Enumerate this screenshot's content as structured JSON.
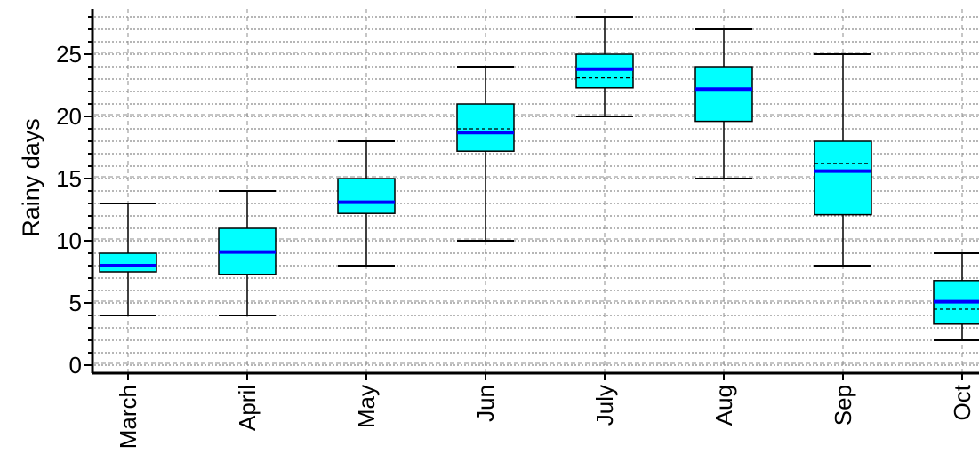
{
  "chart_data": {
    "type": "box",
    "title": "",
    "xlabel": "",
    "ylabel": "Rainy days",
    "ylim": [
      -1,
      29
    ],
    "yticks": [
      "0",
      "5",
      "10",
      "15",
      "20",
      "25"
    ],
    "grid": true,
    "categories": [
      "March",
      "April",
      "May",
      "Jun",
      "July",
      "Aug",
      "Sep",
      "Oct"
    ],
    "boxes": [
      {
        "category": "March",
        "min": 4,
        "q1": 7.5,
        "median": 8,
        "mean": 8,
        "q3": 9,
        "max": 13
      },
      {
        "category": "April",
        "min": 4,
        "q1": 7.3,
        "median": 9.1,
        "mean": 9.1,
        "q3": 11,
        "max": 14
      },
      {
        "category": "May",
        "min": 8,
        "q1": 12.2,
        "median": 13.1,
        "mean": 13.1,
        "q3": 15,
        "max": 18
      },
      {
        "category": "Jun",
        "min": 10,
        "q1": 17.2,
        "median": 18.7,
        "mean": 19,
        "q3": 21,
        "max": 24
      },
      {
        "category": "July",
        "min": 20,
        "q1": 22.3,
        "median": 23.8,
        "mean": 23.1,
        "q3": 25,
        "max": 28
      },
      {
        "category": "Aug",
        "min": 15,
        "q1": 19.6,
        "median": 22.2,
        "mean": 22.2,
        "q3": 24,
        "max": 27
      },
      {
        "category": "Sep",
        "min": 8,
        "q1": 12.1,
        "median": 15.6,
        "mean": 16.2,
        "q3": 18,
        "max": 25
      },
      {
        "category": "Oct",
        "min": 2,
        "q1": 3.3,
        "median": 5.1,
        "mean": 4.5,
        "q3": 6.8,
        "max": 9
      }
    ],
    "colors": {
      "box_fill": "#00ffff",
      "median_line": "#0000ff",
      "mean_line": "#000000",
      "whisker": "#000000",
      "grid": "#808080"
    }
  }
}
